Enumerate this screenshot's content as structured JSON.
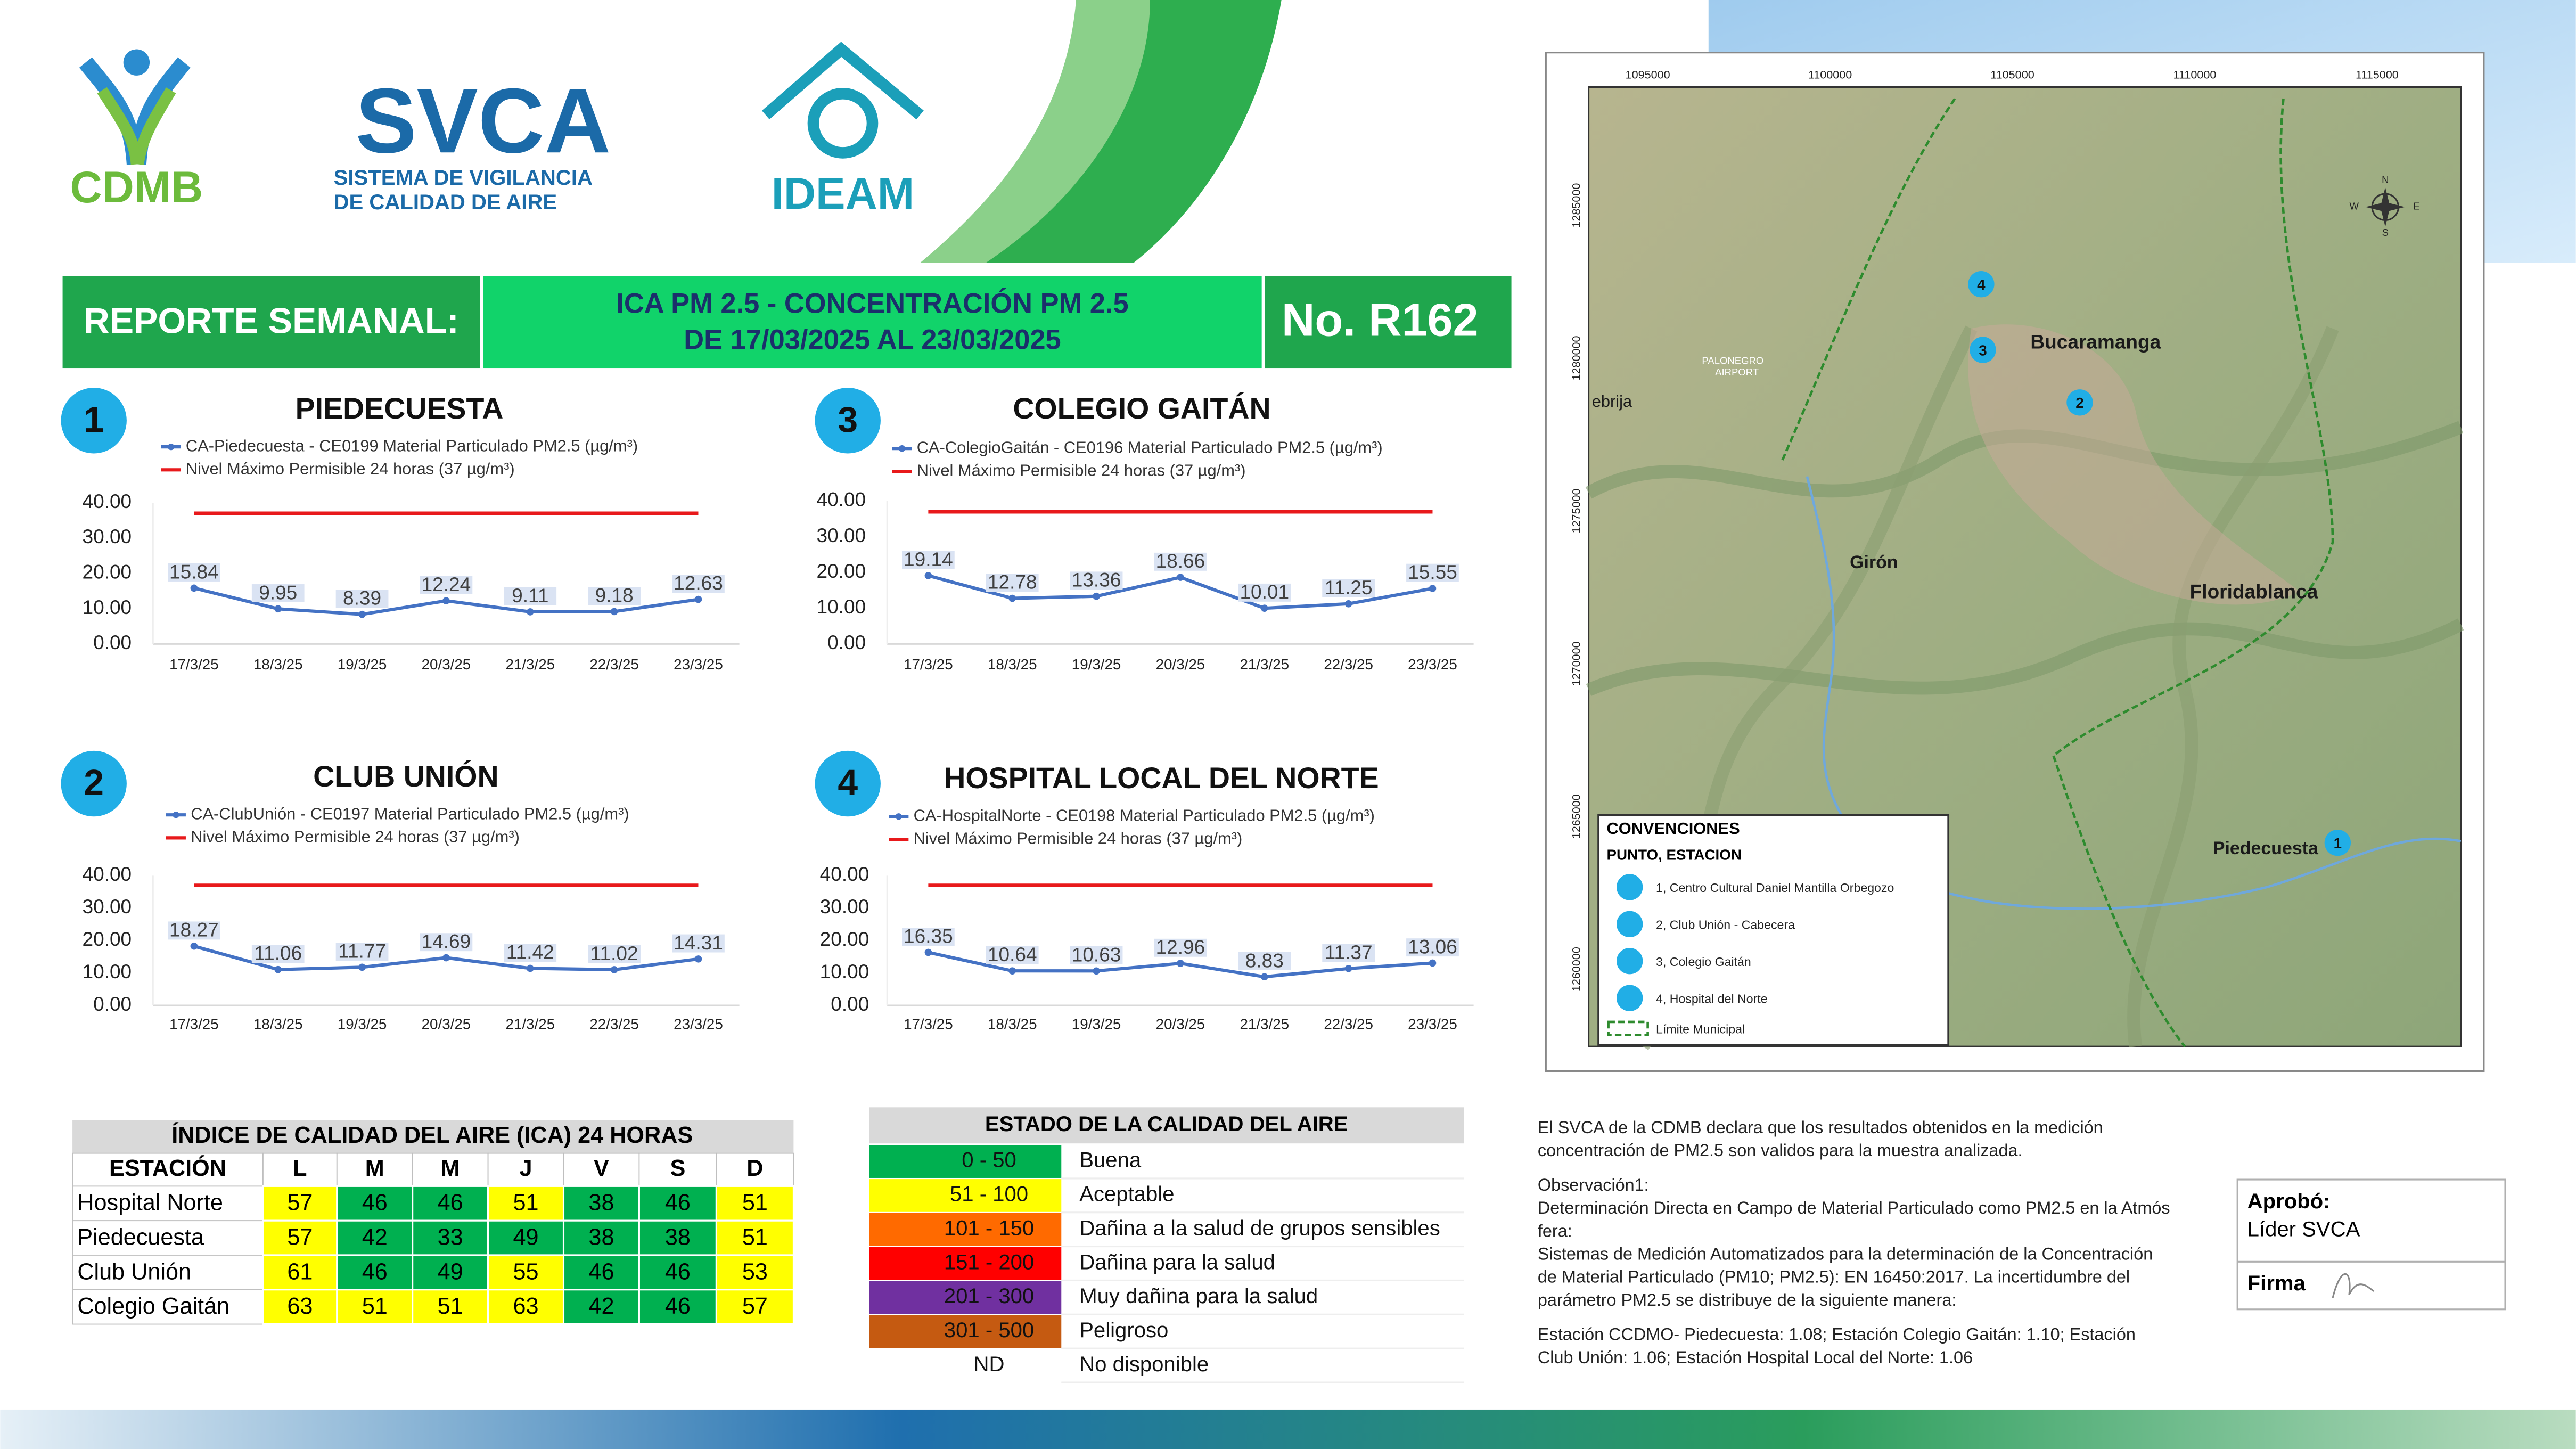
{
  "header": {
    "logo_cdmb": "CDMB",
    "logo_svca": "SVCA",
    "svca_subtitle": [
      "SISTEMA DE VIGILANCIA",
      "DE CALIDAD DE AIRE"
    ],
    "logo_ideam": "IDEAM"
  },
  "banner": {
    "label": "REPORTE SEMANAL:",
    "title": [
      "ICA PM 2.5 - CONCENTRACIÓN PM 2.5",
      "DE 17/03/2025 AL 23/03/2025"
    ],
    "number": "No. R162"
  },
  "charts": [
    {
      "type": "line",
      "badge": "1",
      "title": "PIEDECUESTA",
      "categories": [
        "17/3/25",
        "18/3/25",
        "19/3/25",
        "20/3/25",
        "21/3/25",
        "22/3/25",
        "23/3/25"
      ],
      "series": [
        {
          "name": "CA-Piedecuesta - CE0199 Material Particulado PM2.5 (µg/m³)",
          "color": "#4472c4",
          "values": [
            15.84,
            9.95,
            8.39,
            12.24,
            9.11,
            9.18,
            12.63
          ]
        }
      ],
      "limit": {
        "name": "Nivel Máximo Permisible 24 horas (37 µg/m³)",
        "color": "#e8191b",
        "value": 37
      },
      "ylim": [
        0,
        40
      ],
      "yticks": [
        {
          "value": 0,
          "label": "0.00"
        },
        {
          "value": 10,
          "label": "10.00"
        },
        {
          "value": 20,
          "label": "20.00"
        },
        {
          "value": 30,
          "label": "30.00"
        },
        {
          "value": 40,
          "label": "40.00"
        }
      ]
    },
    {
      "type": "line",
      "badge": "2",
      "title": "CLUB UNIÓN",
      "categories": [
        "17/3/25",
        "18/3/25",
        "19/3/25",
        "20/3/25",
        "21/3/25",
        "22/3/25",
        "23/3/25"
      ],
      "series": [
        {
          "name": "CA-ClubUnión - CE0197 Material Particulado PM2.5 (µg/m³)",
          "color": "#4472c4",
          "values": [
            18.27,
            11.06,
            11.77,
            14.69,
            11.42,
            11.02,
            14.31
          ]
        }
      ],
      "limit": {
        "name": "Nivel Máximo Permisible 24 horas (37 µg/m³)",
        "color": "#e8191b",
        "value": 37
      },
      "ylim": [
        0,
        40
      ],
      "yticks": [
        {
          "value": 0,
          "label": "0.00"
        },
        {
          "value": 10,
          "label": "10.00"
        },
        {
          "value": 20,
          "label": "20.00"
        },
        {
          "value": 30,
          "label": "30.00"
        },
        {
          "value": 40,
          "label": "40.00"
        }
      ]
    },
    {
      "type": "line",
      "badge": "3",
      "title": "COLEGIO GAITÁN",
      "categories": [
        "17/3/25",
        "18/3/25",
        "19/3/25",
        "20/3/25",
        "21/3/25",
        "22/3/25",
        "23/3/25"
      ],
      "series": [
        {
          "name": "CA-ColegioGaitán - CE0196 Material Particulado PM2.5 (µg/m³)",
          "color": "#4472c4",
          "values": [
            19.14,
            12.78,
            13.36,
            18.66,
            10.01,
            11.25,
            15.55
          ]
        }
      ],
      "limit": {
        "name": "Nivel Máximo Permisible 24 horas (37 µg/m³)",
        "color": "#e8191b",
        "value": 37
      },
      "ylim": [
        0,
        40
      ],
      "yticks": [
        {
          "value": 0,
          "label": "0.00"
        },
        {
          "value": 10,
          "label": "10.00"
        },
        {
          "value": 20,
          "label": "20.00"
        },
        {
          "value": 30,
          "label": "30.00"
        },
        {
          "value": 40,
          "label": "40.00"
        }
      ]
    },
    {
      "type": "line",
      "badge": "4",
      "title": "HOSPITAL LOCAL DEL NORTE",
      "categories": [
        "17/3/25",
        "18/3/25",
        "19/3/25",
        "20/3/25",
        "21/3/25",
        "22/3/25",
        "23/3/25"
      ],
      "series": [
        {
          "name": "CA-HospitalNorte - CE0198 Material Particulado PM2.5 (µg/m³)",
          "color": "#4472c4",
          "values": [
            16.35,
            10.64,
            10.63,
            12.96,
            8.83,
            11.37,
            13.06
          ]
        }
      ],
      "limit": {
        "name": "Nivel Máximo Permisible 24 horas (37 µg/m³)",
        "color": "#e8191b",
        "value": 37
      },
      "ylim": [
        0,
        40
      ],
      "yticks": [
        {
          "value": 0,
          "label": "0.00"
        },
        {
          "value": 10,
          "label": "10.00"
        },
        {
          "value": 20,
          "label": "20.00"
        },
        {
          "value": 30,
          "label": "30.00"
        },
        {
          "value": 40,
          "label": "40.00"
        }
      ]
    }
  ],
  "ica_table": {
    "title": "ÍNDICE DE CALIDAD DEL AIRE (ICA) 24 HORAS",
    "columns": [
      "ESTACIÓN",
      "L",
      "M",
      "M",
      "J",
      "V",
      "S",
      "D"
    ],
    "rows": [
      {
        "station": "Hospital Norte",
        "values": [
          57,
          46,
          46,
          51,
          38,
          46,
          51
        ],
        "colors": [
          "#ffff00",
          "#00b050",
          "#00b050",
          "#ffff00",
          "#00b050",
          "#00b050",
          "#ffff00"
        ]
      },
      {
        "station": "Piedecuesta",
        "values": [
          57,
          42,
          33,
          49,
          38,
          38,
          51
        ],
        "colors": [
          "#ffff00",
          "#00b050",
          "#00b050",
          "#00b050",
          "#00b050",
          "#00b050",
          "#ffff00"
        ]
      },
      {
        "station": "Club Unión",
        "values": [
          61,
          46,
          49,
          55,
          46,
          46,
          53
        ],
        "colors": [
          "#ffff00",
          "#00b050",
          "#00b050",
          "#ffff00",
          "#00b050",
          "#00b050",
          "#ffff00"
        ]
      },
      {
        "station": "Colegio Gaitán",
        "values": [
          63,
          51,
          51,
          63,
          42,
          46,
          57
        ],
        "colors": [
          "#ffff00",
          "#ffff00",
          "#ffff00",
          "#ffff00",
          "#00b050",
          "#00b050",
          "#ffff00"
        ]
      }
    ]
  },
  "status_table": {
    "title": "ESTADO DE LA CALIDAD DEL AIRE",
    "rows": [
      {
        "range": "0 - 50",
        "label": "Buena",
        "color": "#00b050"
      },
      {
        "range": "51 - 100",
        "label": "Aceptable",
        "color": "#ffff00"
      },
      {
        "range": "101 - 150",
        "label": "Dañina a la salud de grupos sensibles",
        "color": "#ff6a00"
      },
      {
        "range": "151 - 200",
        "label": "Dañina para la salud",
        "color": "#ff0000"
      },
      {
        "range": "201 - 300",
        "label": "Muy dañina para la salud",
        "color": "#7030a0"
      },
      {
        "range": "301 - 500",
        "label": "Peligroso",
        "color": "#c55a11"
      },
      {
        "range": "ND",
        "label": "No disponible"
      }
    ]
  },
  "notes": [
    [
      "El SVCA  de la CDMB declara que los resultados obtenidos en la medición",
      "concentración de PM2.5 son validos para la muestra  analizada."
    ],
    [
      "Observación1:",
      "Determinación Directa en Campo de Material Particulado como PM2.5 en la Atmós",
      "fera:",
      "Sistemas de Medición Automatizados para la  determinación de la Concentración",
      "de Material Particulado (PM10;  PM2.5): EN 16450:2017. La incertidumbre del",
      "parámetro PM2.5 se distribuye de la siguiente manera:"
    ],
    [
      "Estación CCDMO- Piedecuesta: 1.08; Estación Colegio Gaitán: 1.10; Estación",
      "Club Unión: 1.06; Estación Hospital Local del Norte: 1.06"
    ]
  ],
  "approval": {
    "approved_label": "Aprobó:",
    "approved_by": "Líder SVCA",
    "signature_label": "Firma"
  },
  "map": {
    "x_ticks": [
      1095000,
      1100000,
      1105000,
      1110000,
      1115000
    ],
    "y_ticks": [
      1285000,
      1280000,
      1275000,
      1270000,
      1265000,
      1260000
    ],
    "places": [
      "Bucaramanga",
      "Girón",
      "Floridablanca",
      "Piedecuesta",
      "ebrija"
    ],
    "airport": [
      "PALONEGRO",
      "AIRPORT"
    ],
    "stations": [
      "1",
      "2",
      "3",
      "4"
    ],
    "compass": [
      "N",
      "E",
      "S",
      "W"
    ],
    "legend": {
      "title": "CONVENCIONES",
      "subtitle": "PUNTO, ESTACION",
      "items": [
        "1, Centro Cultural Daniel Mantilla Orbegozo",
        "2, Club Unión - Cabecera",
        "3, Colegio Gaitán",
        "4, Hospital del Norte"
      ],
      "boundary": "Límite Municipal"
    }
  }
}
